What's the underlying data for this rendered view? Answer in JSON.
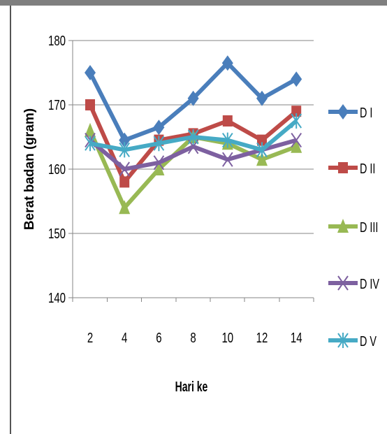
{
  "chart_data": {
    "type": "line",
    "xlabel": "Hari ke",
    "ylabel": "Berat badan  (gram)",
    "x": [
      2,
      4,
      6,
      8,
      10,
      12,
      14
    ],
    "ylim": [
      140,
      180
    ],
    "yticks": [
      140,
      150,
      160,
      170,
      180
    ],
    "grid": true,
    "legend_position": "right",
    "series": [
      {
        "name": "D I",
        "marker": "diamond",
        "color": "#4a7ebb",
        "values": [
          175,
          164.5,
          166.5,
          171,
          176.5,
          171,
          174
        ]
      },
      {
        "name": "D II",
        "marker": "square",
        "color": "#be4b48",
        "values": [
          170,
          158,
          164.5,
          165.5,
          167.5,
          164.5,
          169
        ]
      },
      {
        "name": "D III",
        "marker": "triangle",
        "color": "#98b954",
        "values": [
          166,
          154,
          160,
          165,
          164,
          161.5,
          163.5
        ]
      },
      {
        "name": "D IV",
        "marker": "x",
        "color": "#7d60a0",
        "values": [
          164.5,
          160,
          161,
          163.5,
          161.5,
          163,
          164.5
        ]
      },
      {
        "name": "D V",
        "marker": "star",
        "color": "#46aac5",
        "values": [
          164,
          163,
          164,
          165,
          164.5,
          163,
          167.5
        ]
      }
    ]
  }
}
